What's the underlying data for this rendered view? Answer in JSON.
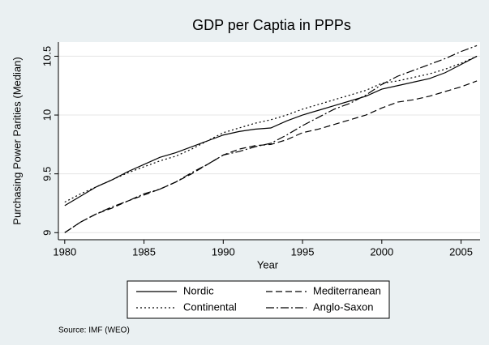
{
  "chart_data": {
    "type": "line",
    "title": "GDP per Captia in PPPs",
    "x_label": "Year",
    "y_label": "Purchasing Power Parities (Median)",
    "source": "Source: IMF (WEO)",
    "x": [
      1980,
      1981,
      1982,
      1983,
      1984,
      1985,
      1986,
      1987,
      1988,
      1989,
      1990,
      1991,
      1992,
      1993,
      1994,
      1995,
      1996,
      1997,
      1998,
      1999,
      2000,
      2001,
      2002,
      2003,
      2004,
      2005,
      2006
    ],
    "series": [
      {
        "name": "Nordic",
        "color": "#000000",
        "dash": "solid",
        "values": [
          9.23,
          9.31,
          9.39,
          9.45,
          9.52,
          9.58,
          9.64,
          9.68,
          9.73,
          9.78,
          9.83,
          9.86,
          9.88,
          9.89,
          9.95,
          10.0,
          10.04,
          10.08,
          10.12,
          10.16,
          10.22,
          10.25,
          10.28,
          10.31,
          10.36,
          10.43,
          10.5
        ]
      },
      {
        "name": "Mediterranean",
        "color": "#000000",
        "dash": "dash",
        "values": [
          9.0,
          9.09,
          9.16,
          9.21,
          9.27,
          9.32,
          9.37,
          9.43,
          9.5,
          9.58,
          9.66,
          9.71,
          9.74,
          9.75,
          9.79,
          9.85,
          9.88,
          9.92,
          9.96,
          10.0,
          10.06,
          10.11,
          10.13,
          10.16,
          10.2,
          10.24,
          10.29
        ]
      },
      {
        "name": "Continental",
        "color": "#000000",
        "dash": "dot",
        "values": [
          9.26,
          9.33,
          9.39,
          9.45,
          9.51,
          9.56,
          9.61,
          9.65,
          9.71,
          9.78,
          9.85,
          9.89,
          9.93,
          9.96,
          10.0,
          10.05,
          10.09,
          10.13,
          10.17,
          10.21,
          10.27,
          10.29,
          10.32,
          10.35,
          10.39,
          10.44,
          10.5
        ]
      },
      {
        "name": "Anglo-Saxon",
        "color": "#000000",
        "dash": "dashdot",
        "values": [
          9.0,
          9.09,
          9.16,
          9.22,
          9.27,
          9.33,
          9.37,
          9.43,
          9.51,
          9.58,
          9.66,
          9.69,
          9.73,
          9.76,
          9.83,
          9.91,
          9.98,
          10.05,
          10.1,
          10.17,
          10.26,
          10.33,
          10.38,
          10.43,
          10.48,
          10.54,
          10.59
        ]
      }
    ],
    "xlim": [
      1979.6,
      2006.2
    ],
    "xticks": [
      1980,
      1985,
      1990,
      1995,
      2000,
      2005
    ],
    "ylim": [
      8.94,
      10.62
    ],
    "yticks": [
      9,
      9.5,
      10,
      10.5
    ],
    "grid": true,
    "legend": "bottom"
  }
}
